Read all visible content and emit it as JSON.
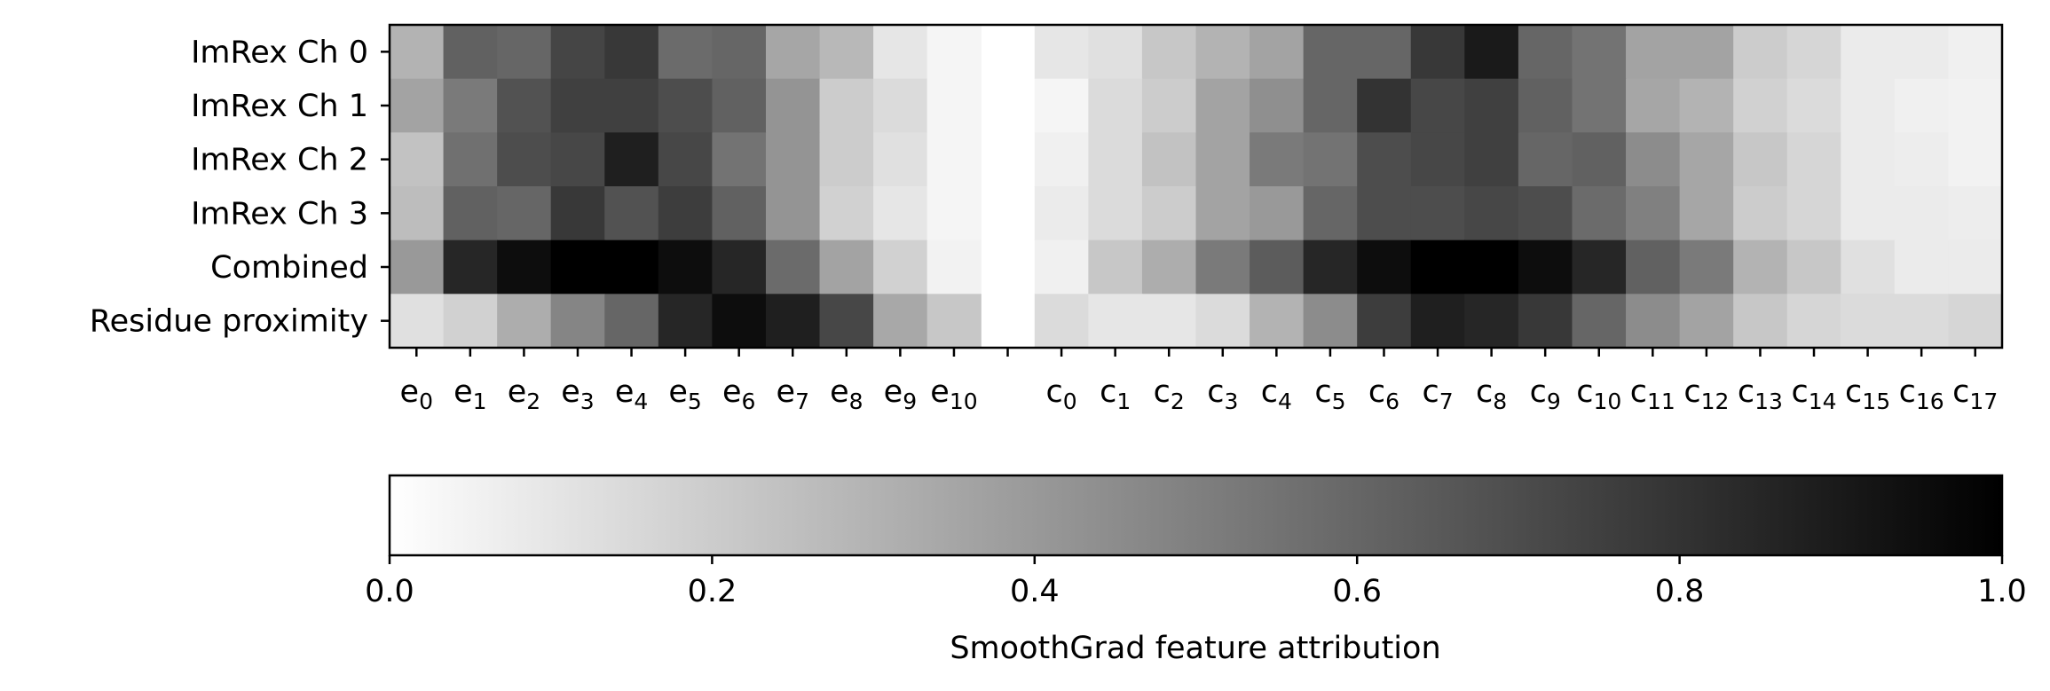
{
  "chart_data": {
    "type": "heatmap",
    "rows": [
      "ImRex Ch 0",
      "ImRex Ch 1",
      "ImRex Ch 2",
      "ImRex Ch 3",
      "Combined",
      "Residue proximity"
    ],
    "columns": [
      {
        "base": "e",
        "sub": "0"
      },
      {
        "base": "e",
        "sub": "1"
      },
      {
        "base": "e",
        "sub": "2"
      },
      {
        "base": "e",
        "sub": "3"
      },
      {
        "base": "e",
        "sub": "4"
      },
      {
        "base": "e",
        "sub": "5"
      },
      {
        "base": "e",
        "sub": "6"
      },
      {
        "base": "e",
        "sub": "7"
      },
      {
        "base": "e",
        "sub": "8"
      },
      {
        "base": "e",
        "sub": "9"
      },
      {
        "base": "e",
        "sub": "10"
      },
      {
        "base": "",
        "sub": ""
      },
      {
        "base": "c",
        "sub": "0"
      },
      {
        "base": "c",
        "sub": "1"
      },
      {
        "base": "c",
        "sub": "2"
      },
      {
        "base": "c",
        "sub": "3"
      },
      {
        "base": "c",
        "sub": "4"
      },
      {
        "base": "c",
        "sub": "5"
      },
      {
        "base": "c",
        "sub": "6"
      },
      {
        "base": "c",
        "sub": "7"
      },
      {
        "base": "c",
        "sub": "8"
      },
      {
        "base": "c",
        "sub": "9"
      },
      {
        "base": "c",
        "sub": "10"
      },
      {
        "base": "c",
        "sub": "11"
      },
      {
        "base": "c",
        "sub": "12"
      },
      {
        "base": "c",
        "sub": "13"
      },
      {
        "base": "c",
        "sub": "14"
      },
      {
        "base": "c",
        "sub": "15"
      },
      {
        "base": "c",
        "sub": "16"
      },
      {
        "base": "c",
        "sub": "17"
      }
    ],
    "values": [
      [
        0.3,
        0.62,
        0.6,
        0.73,
        0.78,
        0.58,
        0.6,
        0.35,
        0.28,
        0.1,
        0.04,
        null,
        0.1,
        0.12,
        0.22,
        0.3,
        0.36,
        0.6,
        0.6,
        0.78,
        0.9,
        0.6,
        0.55,
        0.36,
        0.36,
        0.2,
        0.16,
        0.08,
        0.08,
        0.06
      ],
      [
        0.36,
        0.52,
        0.68,
        0.75,
        0.75,
        0.7,
        0.62,
        0.42,
        0.2,
        0.14,
        0.04,
        null,
        0.04,
        0.14,
        0.2,
        0.36,
        0.44,
        0.6,
        0.8,
        0.72,
        0.75,
        0.62,
        0.55,
        0.35,
        0.3,
        0.18,
        0.14,
        0.08,
        0.06,
        0.05
      ],
      [
        0.24,
        0.56,
        0.7,
        0.72,
        0.88,
        0.72,
        0.55,
        0.42,
        0.2,
        0.12,
        0.04,
        null,
        0.06,
        0.14,
        0.24,
        0.36,
        0.52,
        0.55,
        0.7,
        0.72,
        0.75,
        0.6,
        0.62,
        0.45,
        0.35,
        0.22,
        0.16,
        0.08,
        0.07,
        0.05
      ],
      [
        0.26,
        0.62,
        0.6,
        0.78,
        0.68,
        0.76,
        0.62,
        0.42,
        0.18,
        0.1,
        0.04,
        null,
        0.08,
        0.14,
        0.2,
        0.36,
        0.4,
        0.6,
        0.7,
        0.7,
        0.72,
        0.7,
        0.58,
        0.5,
        0.35,
        0.2,
        0.16,
        0.08,
        0.08,
        0.07
      ],
      [
        0.4,
        0.85,
        0.95,
        1.0,
        1.0,
        0.95,
        0.85,
        0.58,
        0.36,
        0.18,
        0.05,
        null,
        0.06,
        0.22,
        0.32,
        0.52,
        0.64,
        0.85,
        0.95,
        1.0,
        1.0,
        0.95,
        0.85,
        0.62,
        0.52,
        0.3,
        0.22,
        0.12,
        0.08,
        0.08
      ],
      [
        0.12,
        0.18,
        0.32,
        0.48,
        0.6,
        0.85,
        0.95,
        0.88,
        0.72,
        0.34,
        0.22,
        null,
        0.14,
        0.1,
        0.1,
        0.14,
        0.3,
        0.45,
        0.76,
        0.88,
        0.85,
        0.78,
        0.6,
        0.45,
        0.36,
        0.22,
        0.16,
        0.14,
        0.14,
        0.16
      ]
    ],
    "colormap": "Greys",
    "colormap_colors": [
      "#ffffff",
      "#000000"
    ],
    "colorbar": {
      "range": [
        0.0,
        1.0
      ],
      "ticks": [
        "0.0",
        "0.2",
        "0.4",
        "0.6",
        "0.8",
        "1.0"
      ],
      "label": "SmoothGrad feature attribution",
      "orientation": "horizontal"
    },
    "grid": false
  }
}
